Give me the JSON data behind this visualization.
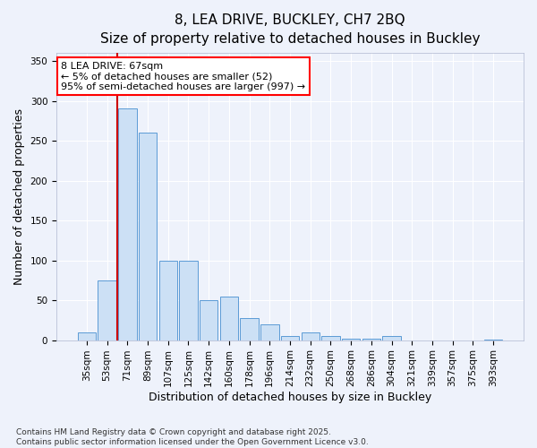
{
  "title_line1": "8, LEA DRIVE, BUCKLEY, CH7 2BQ",
  "title_line2": "Size of property relative to detached houses in Buckley",
  "xlabel": "Distribution of detached houses by size in Buckley",
  "ylabel": "Number of detached properties",
  "bar_color": "#cce0f5",
  "bar_edge_color": "#5b9bd5",
  "vline_color": "#cc0000",
  "categories": [
    "35sqm",
    "53sqm",
    "71sqm",
    "89sqm",
    "107sqm",
    "125sqm",
    "142sqm",
    "160sqm",
    "178sqm",
    "196sqm",
    "214sqm",
    "232sqm",
    "250sqm",
    "268sqm",
    "286sqm",
    "304sqm",
    "321sqm",
    "339sqm",
    "357sqm",
    "375sqm",
    "393sqm"
  ],
  "values": [
    10,
    75,
    290,
    260,
    100,
    100,
    50,
    55,
    28,
    20,
    5,
    10,
    5,
    2,
    2,
    5,
    0,
    0,
    0,
    0,
    1
  ],
  "ylim": [
    0,
    360
  ],
  "yticks": [
    0,
    50,
    100,
    150,
    200,
    250,
    300,
    350
  ],
  "annotation_text": "8 LEA DRIVE: 67sqm\n← 5% of detached houses are smaller (52)\n95% of semi-detached houses are larger (997) →",
  "footer_text": "Contains HM Land Registry data © Crown copyright and database right 2025.\nContains public sector information licensed under the Open Government Licence v3.0.",
  "background_color": "#eef2fb",
  "grid_color": "#ffffff",
  "title_fontsize": 11,
  "subtitle_fontsize": 10,
  "label_fontsize": 9,
  "tick_fontsize": 7.5,
  "footer_fontsize": 6.5,
  "annot_fontsize": 8,
  "vline_pos": 1.5
}
